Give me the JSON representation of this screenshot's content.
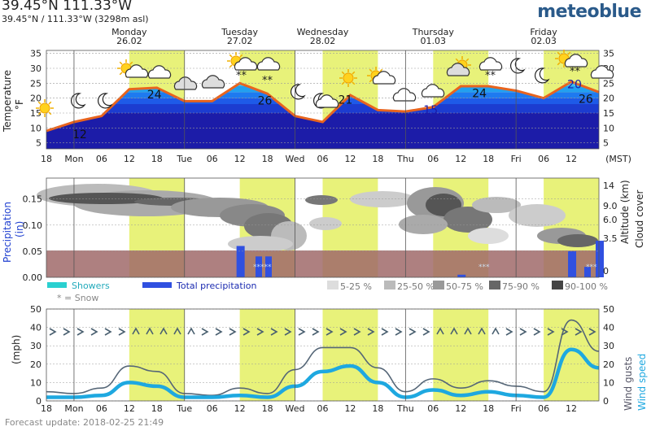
{
  "header": {
    "title": "39.45°N 111.33°W",
    "subtitle": "39.45°N / 111.33°W (3298m asl)",
    "logo": "meteoblue"
  },
  "days": [
    {
      "name": "Monday",
      "date": "26.02"
    },
    {
      "name": "Tuesday",
      "date": "27.02"
    },
    {
      "name": "Wednesday",
      "date": "28.02"
    },
    {
      "name": "Thursday",
      "date": "01.03"
    },
    {
      "name": "Friday",
      "date": "02.03"
    }
  ],
  "x_ticks": [
    "18",
    "Mon",
    "06",
    "12",
    "18",
    "Tue",
    "06",
    "12",
    "18",
    "Wed",
    "06",
    "12",
    "18",
    "Thu",
    "06",
    "12",
    "18",
    "Fri",
    "06",
    "12"
  ],
  "timezone_label": "(MST)",
  "temperature_panel": {
    "ylabel": "Temperature",
    "unit": "°F",
    "yticks": [
      "35",
      "30",
      "25",
      "20",
      "15",
      "10",
      "5"
    ],
    "labels": [
      "12",
      "24",
      "26",
      "21",
      "15",
      "24",
      "20",
      "26"
    ]
  },
  "precip_panel": {
    "ylabel_left": "Precipitation",
    "unit_left": "(in)",
    "yticks_left": [
      "0.15",
      "0.10",
      "0.05",
      "0.00"
    ],
    "ylabel_right_1": "Altitude (km)",
    "ylabel_right_2": "Cloud cover",
    "yticks_right": [
      "14",
      "9.0",
      "6.0",
      "3.5",
      "0"
    ]
  },
  "legend": {
    "showers": "Showers",
    "snow_note": "* = Snow",
    "total": "Total precipitation",
    "cloud_classes": [
      "5-25 %",
      "25-50 %",
      "50-75 %",
      "75-90 %",
      "90-100 %"
    ]
  },
  "wind_panel": {
    "ylabel": "(mph)",
    "yticks": [
      "50",
      "40",
      "30",
      "20",
      "10",
      "0"
    ],
    "legend_gusts": "Wind gusts",
    "legend_speed": "Wind speed"
  },
  "footer": "Forecast update: 2018-02-25 21:49",
  "colors": {
    "daylight": "#e8f27a",
    "temp_line": "#e8641e",
    "precip_bar": "#3050e0",
    "showers": "#2ad0d0",
    "wind_speed": "#1ea8e0",
    "wind_gusts": "#556677",
    "low_fill": "#a06a6a"
  },
  "chart_data": [
    {
      "type": "area",
      "title": "",
      "ylabel": "Temperature °F",
      "ylim": [
        3,
        36
      ],
      "x": [
        "18",
        "Mon",
        "06",
        "12",
        "18",
        "Tue",
        "06",
        "12",
        "18",
        "Wed",
        "06",
        "12",
        "18",
        "Thu",
        "06",
        "12",
        "18",
        "Fri",
        "06",
        "12",
        "18"
      ],
      "series": [
        {
          "values": [
            9,
            12,
            14,
            23,
            23.5,
            19,
            19,
            25,
            21.5,
            14,
            12,
            21,
            16,
            15.5,
            17,
            24,
            24,
            22.5,
            20,
            25.5,
            22
          ]
        }
      ]
    },
    {
      "type": "bar",
      "title": "",
      "ylabel": "Precipitation (in)",
      "ylim": [
        0,
        0.19
      ],
      "x": [
        "18",
        "Mon",
        "06",
        "12",
        "18",
        "Tue",
        "06",
        "12",
        "18",
        "Wed",
        "06",
        "12",
        "18",
        "Thu",
        "06",
        "12",
        "18",
        "Fri",
        "06",
        "12",
        "18"
      ],
      "series": [
        {
          "name": "Total precipitation",
          "values": [
            0,
            0,
            0,
            0,
            0,
            0,
            0,
            0.06,
            0,
            0,
            0,
            0,
            0,
            0,
            0,
            0.005,
            0,
            0,
            0,
            0.05,
            0.07
          ]
        }
      ]
    },
    {
      "type": "line",
      "title": "",
      "ylabel": "(mph)",
      "ylim": [
        0,
        50
      ],
      "x": [
        "18",
        "Mon",
        "06",
        "12",
        "18",
        "Tue",
        "06",
        "12",
        "18",
        "Wed",
        "06",
        "12",
        "18",
        "Thu",
        "06",
        "12",
        "18",
        "Fri",
        "06",
        "12",
        "18"
      ],
      "series": [
        {
          "name": "Wind gusts",
          "values": [
            5,
            4,
            7,
            19,
            16,
            4,
            3,
            7,
            4,
            17,
            29,
            29,
            18,
            5,
            12,
            7,
            11,
            8,
            5,
            44,
            27
          ]
        },
        {
          "name": "Wind speed",
          "values": [
            2,
            2,
            3,
            10,
            8,
            2,
            2,
            3,
            2,
            8,
            16,
            19,
            10,
            2,
            6,
            3,
            5,
            3,
            2,
            28,
            18
          ]
        }
      ]
    }
  ]
}
